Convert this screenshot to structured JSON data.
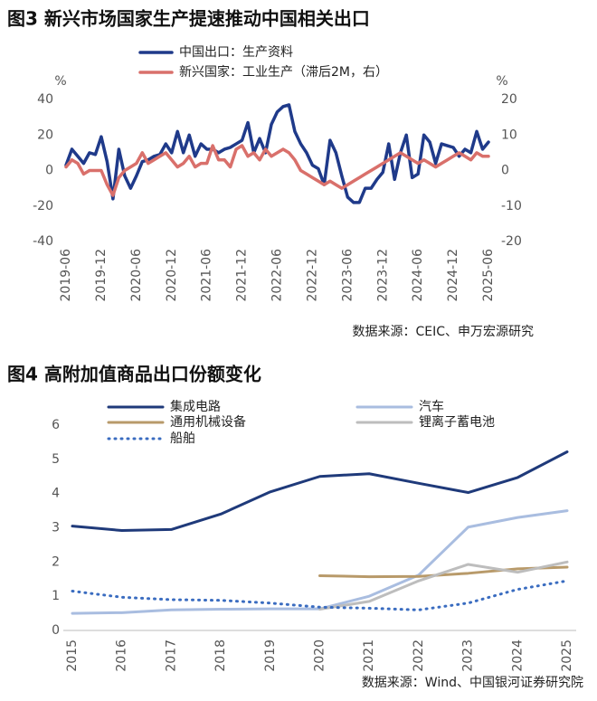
{
  "chart_data": [
    {
      "type": "line",
      "title": "图3  新兴市场国家生产提速推动中国相关出口",
      "ylabel": "%",
      "y2label": "%",
      "source": "数据来源：CEIC、申万宏源研究",
      "x": [
        "2019-06",
        "2019-07",
        "2019-08",
        "2019-09",
        "2019-10",
        "2019-11",
        "2019-12",
        "2020-01",
        "2020-02",
        "2020-03",
        "2020-04",
        "2020-05",
        "2020-06",
        "2020-07",
        "2020-08",
        "2020-09",
        "2020-10",
        "2020-11",
        "2020-12",
        "2021-01",
        "2021-02",
        "2021-03",
        "2021-04",
        "2021-05",
        "2021-06",
        "2021-07",
        "2021-08",
        "2021-09",
        "2021-10",
        "2021-11",
        "2021-12",
        "2022-01",
        "2022-02",
        "2022-03",
        "2022-04",
        "2022-05",
        "2022-06",
        "2022-07",
        "2022-08",
        "2022-09",
        "2022-10",
        "2022-11",
        "2022-12",
        "2023-01",
        "2023-02",
        "2023-03",
        "2023-04",
        "2023-05",
        "2023-06",
        "2023-07",
        "2023-08",
        "2023-09",
        "2023-10",
        "2023-11",
        "2023-12",
        "2024-01",
        "2024-02",
        "2024-03",
        "2024-04",
        "2024-05",
        "2024-06",
        "2024-07",
        "2024-08",
        "2024-09",
        "2024-10",
        "2024-11",
        "2024-12",
        "2025-01",
        "2025-02",
        "2025-03",
        "2025-04",
        "2025-05",
        "2025-06"
      ],
      "xticks": [
        "2019-06",
        "2019-12",
        "2020-06",
        "2020-12",
        "2021-06",
        "2021-12",
        "2022-06",
        "2022-12",
        "2023-06",
        "2023-12",
        "2024-06",
        "2024-12",
        "2025-06"
      ],
      "ylim": [
        -40,
        40
      ],
      "yticks": [
        -40,
        -20,
        0,
        20,
        40
      ],
      "y2lim": [
        -20,
        20
      ],
      "y2ticks": [
        -20,
        -10,
        0,
        10,
        20
      ],
      "series": [
        {
          "name": "中国出口：生产资料",
          "color": "#1f3a8a",
          "values": [
            3,
            12,
            8,
            4,
            10,
            9,
            19,
            5,
            -16,
            12,
            -3,
            -10,
            -3,
            5,
            6,
            8,
            9,
            15,
            10,
            22,
            10,
            20,
            8,
            15,
            12,
            12,
            10,
            12,
            13,
            15,
            17,
            27,
            10,
            18,
            10,
            26,
            33,
            36,
            37,
            22,
            15,
            10,
            3,
            1,
            -8,
            17,
            10,
            -3,
            -15,
            -18,
            -18,
            -10,
            -10,
            -5,
            -1,
            15,
            -5,
            10,
            20,
            -4,
            -2,
            20,
            16,
            4,
            15,
            14,
            13,
            8,
            12,
            10,
            22,
            12,
            16
          ]
        },
        {
          "name": "新兴国家：工业生产（滞后2M，右）",
          "color": "#d9706b",
          "axis": "y2",
          "values": [
            1,
            3,
            2,
            -1,
            0,
            0,
            0,
            -4,
            -7,
            -2,
            0,
            1,
            2,
            5,
            2,
            3,
            4,
            5,
            3,
            1,
            2,
            4,
            1,
            2,
            2,
            7,
            3,
            3,
            1,
            6,
            7,
            4,
            5,
            3,
            6,
            4,
            5,
            6,
            5,
            3,
            0,
            -1,
            -2,
            -3,
            -4,
            -3,
            -4,
            -5,
            -4,
            -3,
            -2,
            -1,
            0,
            1,
            2,
            3,
            4,
            5,
            4,
            3,
            2,
            3,
            2,
            1,
            2,
            3,
            4,
            5,
            4,
            3,
            5,
            4,
            4
          ]
        }
      ]
    },
    {
      "type": "line",
      "title": "图4  高附加值商品出口份额变化",
      "source": "数据来源：Wind、中国银河证券研究院",
      "categories": [
        "2015",
        "2016",
        "2017",
        "2018",
        "2019",
        "2020",
        "2021",
        "2022",
        "2023",
        "2024",
        "2025"
      ],
      "ylim": [
        0,
        6
      ],
      "yticks": [
        0,
        1,
        2,
        3,
        4,
        5,
        6
      ],
      "series": [
        {
          "name": "集成电路",
          "color": "#1f3a7a",
          "values": [
            3.05,
            2.92,
            2.95,
            3.4,
            4.05,
            4.5,
            4.58,
            4.3,
            4.03,
            4.47,
            5.22
          ]
        },
        {
          "name": "汽车",
          "color": "#a9bde0",
          "values": [
            0.5,
            0.52,
            0.6,
            0.62,
            0.63,
            0.63,
            1.0,
            1.62,
            3.02,
            3.3,
            3.5
          ]
        },
        {
          "name": "通用机械设备",
          "color": "#b89a6a",
          "values": [
            null,
            null,
            null,
            null,
            null,
            1.6,
            1.57,
            1.58,
            1.67,
            1.8,
            1.85
          ]
        },
        {
          "name": "锂离子蓄电池",
          "color": "#bdbdbd",
          "values": [
            null,
            null,
            null,
            null,
            null,
            0.62,
            0.85,
            1.45,
            1.93,
            1.7,
            2.0
          ]
        },
        {
          "name": "船舶",
          "color": "#3a6cc0",
          "style": "dotted",
          "values": [
            1.15,
            0.97,
            0.9,
            0.88,
            0.8,
            0.68,
            0.65,
            0.6,
            0.8,
            1.2,
            1.45
          ]
        }
      ]
    }
  ]
}
